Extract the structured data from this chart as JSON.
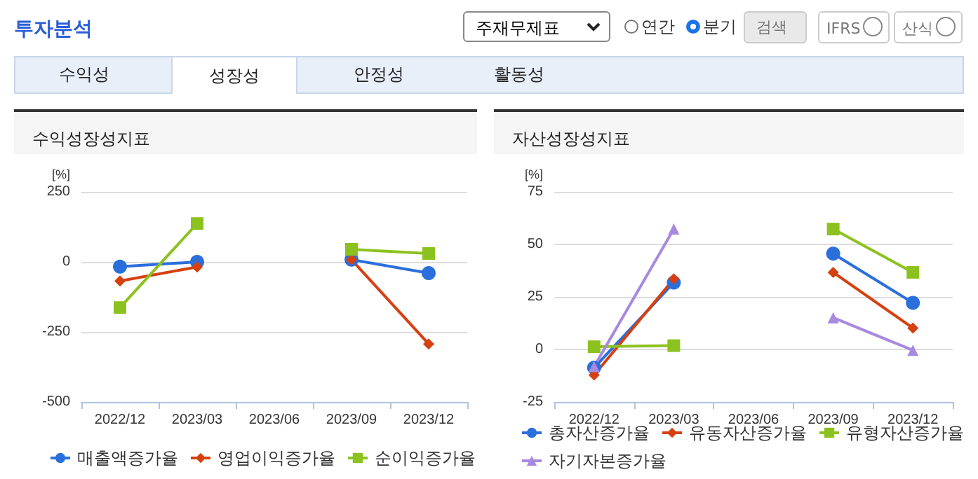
{
  "chart_data": [
    {
      "type": "other",
      "title": "투자분석",
      "annotations": [
        "주재무제표",
        "연간",
        "분기",
        "검색",
        "IFRS",
        "산식",
        "수익성",
        "성장성",
        "안정성",
        "활동성"
      ]
    },
    {
      "type": "line",
      "title": "수익성장성지표",
      "ylabel": "[%]",
      "categories": [
        "2022/12",
        "2023/03",
        "2023/06",
        "2023/09",
        "2023/12"
      ],
      "ylim": [
        -500,
        250
      ],
      "yticks": [
        -500,
        -250,
        0,
        250
      ],
      "grid": "y",
      "legend": "bottom",
      "line_style": "solid",
      "series": [
        {
          "name": "매출액증가율",
          "color": "#2a6fdb",
          "marker": "circle",
          "values": [
            -17,
            0,
            null,
            8,
            -40
          ]
        },
        {
          "name": "영업이익증가율",
          "color": "#d6400f",
          "marker": "diamond",
          "values": [
            -68,
            -18,
            null,
            8,
            -293
          ]
        },
        {
          "name": "순이익증가율",
          "color": "#8cc21f",
          "marker": "square",
          "values": [
            -163,
            137,
            null,
            45,
            30
          ]
        }
      ]
    },
    {
      "type": "line",
      "title": "자산성장성지표",
      "ylabel": "[%]",
      "categories": [
        "2022/12",
        "2023/03",
        "2023/06",
        "2023/09",
        "2023/12"
      ],
      "ylim": [
        -25,
        75
      ],
      "yticks": [
        -25,
        0,
        25,
        50,
        75
      ],
      "grid": "y",
      "legend": "bottom",
      "line_style": "solid",
      "series": [
        {
          "name": "총자산증가율",
          "color": "#2a6fdb",
          "marker": "circle",
          "values": [
            -8.7,
            31.8,
            null,
            45.6,
            22.2
          ]
        },
        {
          "name": "유동자산증가율",
          "color": "#d6400f",
          "marker": "diamond",
          "values": [
            -12.2,
            33.6,
            null,
            36.7,
            10.2
          ]
        },
        {
          "name": "유형자산증가율",
          "color": "#8cc21f",
          "marker": "square",
          "values": [
            1.3,
            1.8,
            null,
            57.3,
            36.7
          ]
        },
        {
          "name": "자기자본증가율",
          "color": "#a889e0",
          "marker": "triangle",
          "values": [
            -8.2,
            57.3,
            null,
            15.1,
            -0.4
          ]
        }
      ]
    }
  ]
}
